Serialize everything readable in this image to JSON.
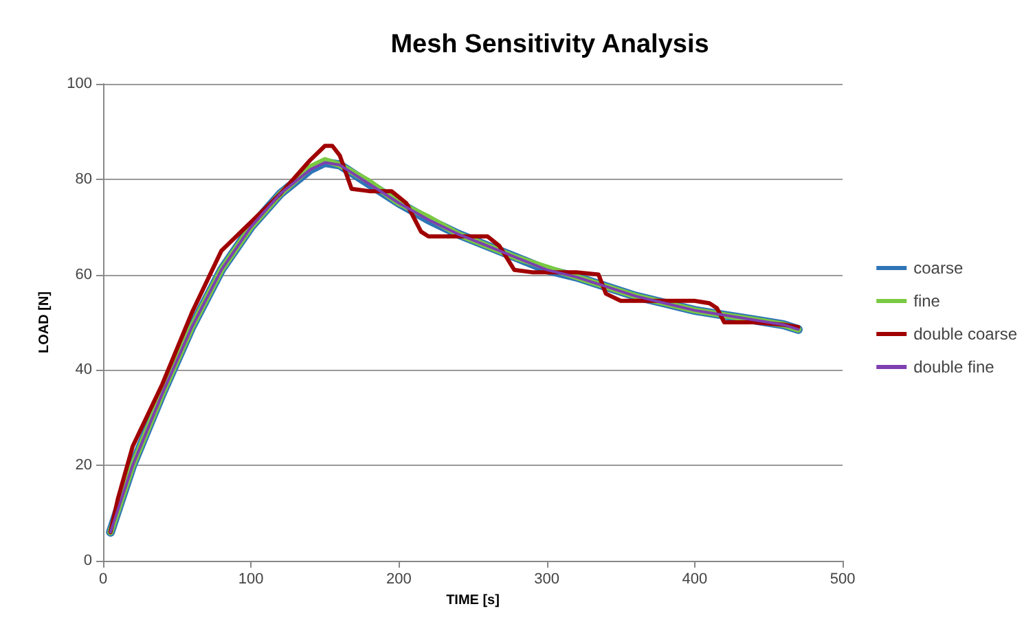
{
  "chart_data": {
    "type": "line",
    "title": "Mesh Sensitivity Analysis",
    "xlabel": "TIME [s]",
    "ylabel": "LOAD [N]",
    "xlim": [
      0,
      500
    ],
    "xticks": [
      0,
      100,
      200,
      300,
      400,
      500
    ],
    "ylim": [
      0,
      100
    ],
    "yticks": [
      0,
      20,
      40,
      60,
      80,
      100
    ],
    "grid": "y",
    "legend": "right",
    "marker": "none",
    "line_style": "solid",
    "series": [
      {
        "name": "coarse",
        "color": "#2e75b6",
        "x": [
          5,
          20,
          40,
          60,
          80,
          100,
          120,
          140,
          150,
          160,
          180,
          200,
          220,
          240,
          260,
          280,
          300,
          320,
          340,
          360,
          380,
          400,
          420,
          440,
          460,
          470
        ],
        "values": [
          6,
          20,
          35,
          49,
          61,
          70,
          77,
          82,
          83.5,
          83,
          79,
          75,
          71.5,
          68.5,
          66,
          63.5,
          61,
          59.5,
          57.5,
          55.5,
          54,
          52.5,
          51.5,
          50.5,
          49.5,
          48.5
        ]
      },
      {
        "name": "fine",
        "color": "#7ac943",
        "x": [
          5,
          20,
          40,
          60,
          80,
          100,
          120,
          140,
          150,
          160,
          180,
          200,
          220,
          240,
          260,
          280,
          300,
          320,
          340,
          360,
          380,
          400,
          420,
          440,
          460,
          470
        ],
        "values": [
          6,
          20,
          35,
          49,
          61,
          70,
          77,
          82.5,
          84,
          83,
          79.5,
          75,
          72,
          68.5,
          66,
          63.5,
          61.5,
          59.5,
          57.5,
          55.5,
          54,
          52.5,
          51.5,
          50.5,
          49.5,
          48.5
        ]
      },
      {
        "name": "double coarse",
        "color": "#a00000",
        "x": [
          5,
          10,
          20,
          40,
          60,
          80,
          100,
          120,
          140,
          150,
          155,
          160,
          168,
          180,
          195,
          205,
          215,
          220,
          240,
          260,
          268,
          278,
          290,
          320,
          335,
          340,
          350,
          380,
          400,
          410,
          415,
          420,
          440,
          460,
          470
        ],
        "values": [
          6,
          13,
          24,
          37,
          52,
          65,
          71,
          77,
          84,
          87,
          87,
          85,
          78,
          77.5,
          77.5,
          75,
          69,
          68,
          68,
          68,
          66,
          61,
          60.5,
          60.5,
          60,
          56,
          54.5,
          54.5,
          54.5,
          54,
          53,
          50,
          50,
          49.5,
          49
        ]
      },
      {
        "name": "double fine",
        "color": "#7e3fb0",
        "x": [
          5,
          20,
          40,
          60,
          80,
          100,
          120,
          140,
          150,
          160,
          180,
          200,
          220,
          240,
          260,
          280,
          300,
          320,
          340,
          360,
          380,
          400,
          420,
          440,
          460,
          470
        ],
        "values": [
          6,
          20,
          35,
          49,
          61,
          70,
          77,
          82,
          83.5,
          83,
          79,
          75,
          71.5,
          68.5,
          66,
          63.5,
          61,
          59.5,
          57.5,
          55.5,
          54,
          52.5,
          51.5,
          50.5,
          49.5,
          48.5
        ]
      }
    ]
  }
}
